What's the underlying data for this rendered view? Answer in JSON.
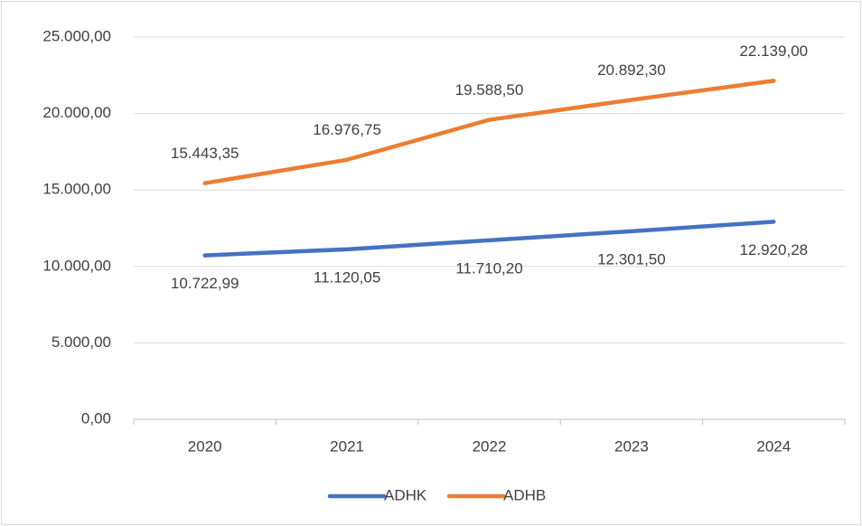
{
  "chart_data": {
    "type": "line",
    "categories": [
      "2020",
      "2021",
      "2022",
      "2023",
      "2024"
    ],
    "series": [
      {
        "name": "ADHK",
        "color": "#4472c4",
        "values": [
          10722.99,
          11120.05,
          11710.2,
          12301.5,
          12920.28
        ],
        "value_labels": [
          "10.722,99",
          "11.120,05",
          "11.710,20",
          "12.301,50",
          "12.920,28"
        ]
      },
      {
        "name": "ADHB",
        "color": "#ed7d31",
        "values": [
          15443.35,
          16976.75,
          19588.5,
          20892.3,
          22139.0
        ],
        "value_labels": [
          "15.443,35",
          "16.976,75",
          "19.588,50",
          "20.892,30",
          "22.139,00"
        ]
      }
    ],
    "ylim": [
      0,
      25000
    ],
    "yticks": [
      {
        "value": 0,
        "label": "0,00"
      },
      {
        "value": 5000,
        "label": "5.000,00"
      },
      {
        "value": 10000,
        "label": "10.000,00"
      },
      {
        "value": 15000,
        "label": "15.000,00"
      },
      {
        "value": 20000,
        "label": "20.000,00"
      },
      {
        "value": 25000,
        "label": "25.000,00"
      }
    ],
    "grid": true,
    "legend": "bottom"
  }
}
